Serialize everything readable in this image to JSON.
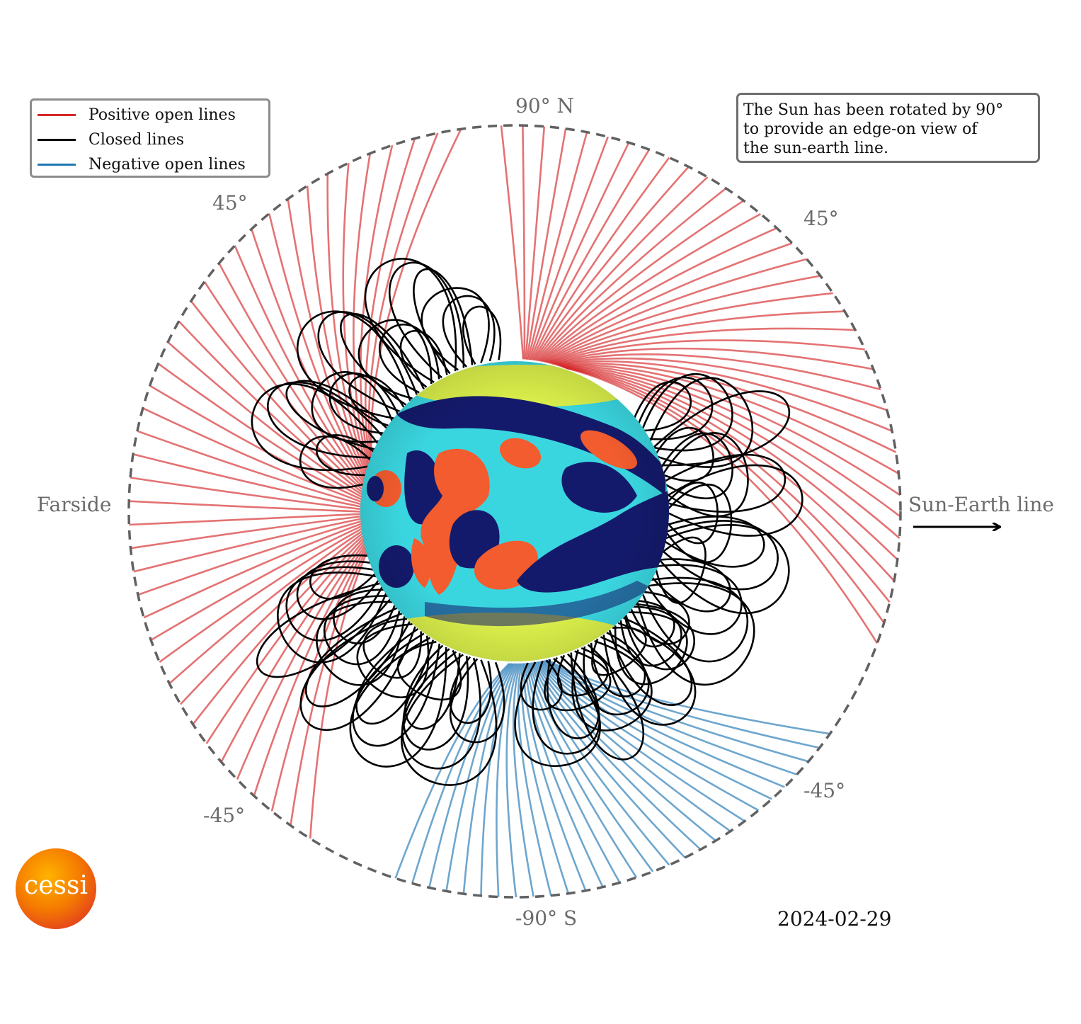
{
  "legend": {
    "items": [
      {
        "label": "Positive open lines",
        "color": "#d62728"
      },
      {
        "label": "Closed lines",
        "color": "#000000"
      },
      {
        "label": "Negative open lines",
        "color": "#1f77b4"
      }
    ]
  },
  "note": {
    "lines": [
      "The Sun has been rotated by 90°",
      "to provide an edge-on view of",
      "the sun-earth line."
    ]
  },
  "labels": {
    "north": "90° N",
    "south": "-90° S",
    "farside": "Farside",
    "sun_earth": "Sun-Earth line",
    "upper_left": "45°",
    "upper_right": "45°",
    "lower_left": "-45°",
    "lower_right": "-45°"
  },
  "date": "2024-02-29",
  "logo": {
    "text": "cessi"
  },
  "colors": {
    "positive": "#d62728",
    "closed": "#000000",
    "negative": "#1f77b4",
    "boundary": "#616161",
    "sun_navy": "#141a6b",
    "sun_orange": "#f25c2e",
    "sun_cyan": "#3ad6e0",
    "sun_yellow": "#d9ee4a"
  }
}
